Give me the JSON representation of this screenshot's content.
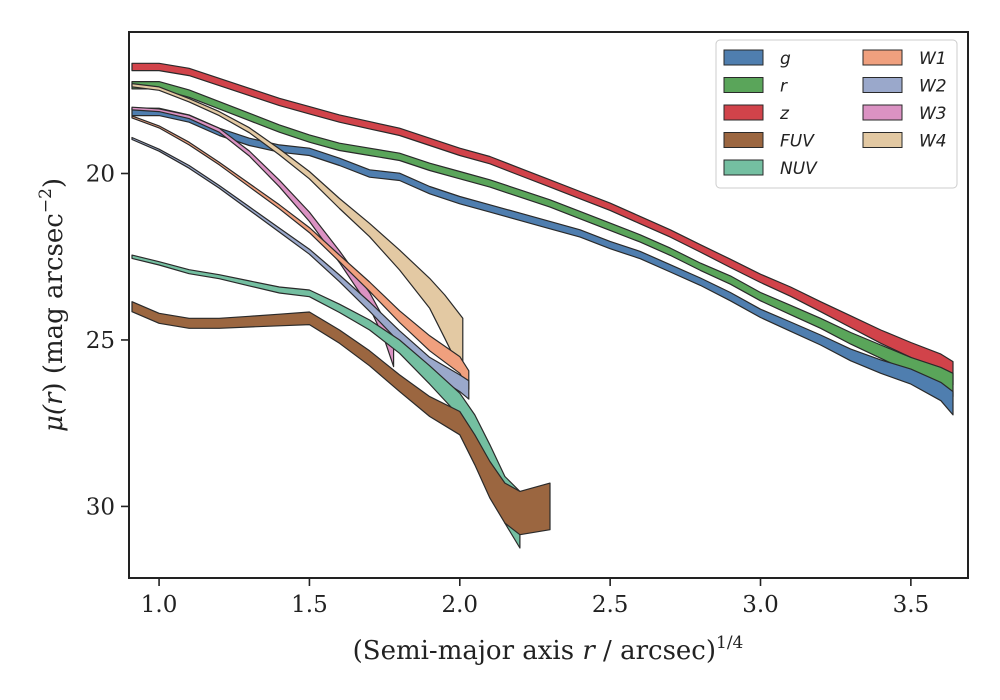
{
  "chart_data": {
    "type": "area",
    "xlabel_main": "(Semi-major axis ",
    "xlabel_var": "r",
    "xlabel_tail": " / arcsec)",
    "xlabel_sup": "1/4",
    "ylabel_pre": "μ(",
    "ylabel_var": "r",
    "ylabel_post": ") (mag arcsec",
    "ylabel_sup": "−2",
    "ylabel_end": ")",
    "xlim": [
      0.9,
      3.69
    ],
    "ylim": [
      32.15,
      15.75
    ],
    "y_inverted": true,
    "xticks": [
      1.0,
      1.5,
      2.0,
      2.5,
      3.0,
      3.5
    ],
    "xtick_labels": [
      "1.0",
      "1.5",
      "2.0",
      "2.5",
      "3.0",
      "3.5"
    ],
    "yticks": [
      20,
      25,
      30
    ],
    "ytick_labels": [
      "20",
      "25",
      "30"
    ],
    "grid": false,
    "legend_position": "top-right",
    "legend_columns": 2,
    "series": [
      {
        "name": "z",
        "color": "#d1434a",
        "points": [
          [
            0.91,
            16.8
          ],
          [
            1.0,
            16.8
          ],
          [
            1.1,
            16.95
          ],
          [
            1.2,
            17.25
          ],
          [
            1.3,
            17.55
          ],
          [
            1.4,
            17.85
          ],
          [
            1.5,
            18.1
          ],
          [
            1.6,
            18.35
          ],
          [
            1.7,
            18.55
          ],
          [
            1.8,
            18.75
          ],
          [
            1.9,
            19.05
          ],
          [
            2.0,
            19.35
          ],
          [
            2.1,
            19.6
          ],
          [
            2.2,
            19.95
          ],
          [
            2.3,
            20.3
          ],
          [
            2.4,
            20.65
          ],
          [
            2.5,
            21.0
          ],
          [
            2.6,
            21.4
          ],
          [
            2.7,
            21.8
          ],
          [
            2.8,
            22.25
          ],
          [
            2.9,
            22.7
          ],
          [
            3.0,
            23.15
          ],
          [
            3.1,
            23.55
          ],
          [
            3.2,
            24.0
          ],
          [
            3.3,
            24.45
          ],
          [
            3.4,
            24.9
          ],
          [
            3.5,
            25.3
          ],
          [
            3.6,
            25.7
          ],
          [
            3.64,
            26.0
          ]
        ],
        "width": [
          0.22,
          0.22,
          0.22,
          0.22,
          0.22,
          0.22,
          0.22,
          0.22,
          0.22,
          0.22,
          0.22,
          0.22,
          0.22,
          0.22,
          0.22,
          0.22,
          0.22,
          0.22,
          0.22,
          0.22,
          0.25,
          0.25,
          0.28,
          0.3,
          0.35,
          0.4,
          0.45,
          0.55,
          0.7
        ]
      },
      {
        "name": "r",
        "color": "#5aa55a",
        "points": [
          [
            0.91,
            17.35
          ],
          [
            1.0,
            17.35
          ],
          [
            1.1,
            17.6
          ],
          [
            1.2,
            17.95
          ],
          [
            1.3,
            18.3
          ],
          [
            1.4,
            18.65
          ],
          [
            1.5,
            18.95
          ],
          [
            1.6,
            19.2
          ],
          [
            1.7,
            19.35
          ],
          [
            1.8,
            19.5
          ],
          [
            1.9,
            19.8
          ],
          [
            2.0,
            20.05
          ],
          [
            2.1,
            20.3
          ],
          [
            2.2,
            20.6
          ],
          [
            2.3,
            20.9
          ],
          [
            2.4,
            21.25
          ],
          [
            2.5,
            21.6
          ],
          [
            2.6,
            21.95
          ],
          [
            2.7,
            22.35
          ],
          [
            2.8,
            22.8
          ],
          [
            2.9,
            23.2
          ],
          [
            3.0,
            23.7
          ],
          [
            3.1,
            24.1
          ],
          [
            3.2,
            24.5
          ],
          [
            3.3,
            24.95
          ],
          [
            3.4,
            25.35
          ],
          [
            3.5,
            25.75
          ],
          [
            3.6,
            26.1
          ],
          [
            3.64,
            26.35
          ]
        ],
        "width": [
          0.22,
          0.22,
          0.22,
          0.22,
          0.22,
          0.22,
          0.22,
          0.22,
          0.22,
          0.22,
          0.22,
          0.22,
          0.22,
          0.22,
          0.22,
          0.22,
          0.22,
          0.22,
          0.22,
          0.22,
          0.25,
          0.25,
          0.28,
          0.3,
          0.35,
          0.4,
          0.45,
          0.55,
          0.7
        ]
      },
      {
        "name": "g",
        "color": "#4f7eaf",
        "points": [
          [
            0.91,
            18.15
          ],
          [
            1.0,
            18.15
          ],
          [
            1.1,
            18.35
          ],
          [
            1.2,
            18.75
          ],
          [
            1.3,
            19.05
          ],
          [
            1.4,
            19.25
          ],
          [
            1.5,
            19.35
          ],
          [
            1.6,
            19.65
          ],
          [
            1.7,
            20.0
          ],
          [
            1.8,
            20.1
          ],
          [
            1.9,
            20.5
          ],
          [
            2.0,
            20.8
          ],
          [
            2.1,
            21.05
          ],
          [
            2.2,
            21.3
          ],
          [
            2.3,
            21.55
          ],
          [
            2.4,
            21.8
          ],
          [
            2.5,
            22.15
          ],
          [
            2.6,
            22.45
          ],
          [
            2.7,
            22.85
          ],
          [
            2.8,
            23.25
          ],
          [
            2.9,
            23.7
          ],
          [
            3.0,
            24.2
          ],
          [
            3.1,
            24.6
          ],
          [
            3.2,
            25.0
          ],
          [
            3.3,
            25.45
          ],
          [
            3.4,
            25.8
          ],
          [
            3.5,
            26.1
          ],
          [
            3.6,
            26.55
          ],
          [
            3.64,
            26.9
          ]
        ],
        "width": [
          0.22,
          0.22,
          0.22,
          0.22,
          0.22,
          0.22,
          0.22,
          0.22,
          0.22,
          0.22,
          0.22,
          0.22,
          0.22,
          0.22,
          0.22,
          0.22,
          0.22,
          0.22,
          0.22,
          0.22,
          0.25,
          0.25,
          0.28,
          0.3,
          0.35,
          0.4,
          0.45,
          0.55,
          0.7
        ]
      },
      {
        "name": "W4",
        "color": "#e3c9a3",
        "points": [
          [
            0.91,
            17.35
          ],
          [
            1.0,
            17.45
          ],
          [
            1.1,
            17.8
          ],
          [
            1.2,
            18.2
          ],
          [
            1.3,
            18.7
          ],
          [
            1.4,
            19.35
          ],
          [
            1.5,
            20.05
          ],
          [
            1.6,
            20.9
          ],
          [
            1.7,
            21.7
          ],
          [
            1.8,
            22.6
          ],
          [
            1.9,
            23.6
          ],
          [
            1.95,
            24.3
          ],
          [
            2.01,
            25.2
          ]
        ],
        "width": [
          0.1,
          0.1,
          0.1,
          0.12,
          0.15,
          0.18,
          0.22,
          0.3,
          0.4,
          0.6,
          0.9,
          1.3,
          1.7
        ]
      },
      {
        "name": "W3",
        "color": "#db92c3",
        "points": [
          [
            0.91,
            18.05
          ],
          [
            1.0,
            18.1
          ],
          [
            1.1,
            18.3
          ],
          [
            1.2,
            18.7
          ],
          [
            1.3,
            19.4
          ],
          [
            1.4,
            20.3
          ],
          [
            1.5,
            21.3
          ],
          [
            1.6,
            22.5
          ],
          [
            1.7,
            23.8
          ],
          [
            1.75,
            24.7
          ],
          [
            1.78,
            25.4
          ]
        ],
        "width": [
          0.08,
          0.08,
          0.1,
          0.12,
          0.15,
          0.2,
          0.28,
          0.35,
          0.45,
          0.6,
          0.8
        ]
      },
      {
        "name": "W1",
        "color": "#f0a07e",
        "points": [
          [
            0.91,
            18.3
          ],
          [
            1.0,
            18.6
          ],
          [
            1.1,
            19.1
          ],
          [
            1.2,
            19.7
          ],
          [
            1.3,
            20.35
          ],
          [
            1.4,
            21.0
          ],
          [
            1.5,
            21.7
          ],
          [
            1.6,
            22.55
          ],
          [
            1.7,
            23.4
          ],
          [
            1.8,
            24.3
          ],
          [
            1.9,
            25.1
          ],
          [
            2.0,
            25.75
          ],
          [
            2.03,
            26.2
          ]
        ],
        "width": [
          0.06,
          0.06,
          0.08,
          0.08,
          0.1,
          0.12,
          0.15,
          0.2,
          0.28,
          0.35,
          0.45,
          0.5,
          0.55
        ]
      },
      {
        "name": "W2",
        "color": "#9aa8cb",
        "points": [
          [
            0.91,
            18.95
          ],
          [
            1.0,
            19.3
          ],
          [
            1.1,
            19.8
          ],
          [
            1.2,
            20.4
          ],
          [
            1.3,
            21.05
          ],
          [
            1.4,
            21.7
          ],
          [
            1.5,
            22.35
          ],
          [
            1.6,
            23.15
          ],
          [
            1.7,
            24.0
          ],
          [
            1.8,
            24.9
          ],
          [
            1.9,
            25.75
          ],
          [
            2.0,
            26.3
          ],
          [
            2.03,
            26.5
          ]
        ],
        "width": [
          0.06,
          0.06,
          0.08,
          0.08,
          0.1,
          0.12,
          0.15,
          0.2,
          0.28,
          0.35,
          0.45,
          0.5,
          0.55
        ]
      },
      {
        "name": "NUV",
        "color": "#74bfa1",
        "points": [
          [
            0.91,
            22.5
          ],
          [
            1.0,
            22.7
          ],
          [
            1.1,
            22.95
          ],
          [
            1.2,
            23.1
          ],
          [
            1.3,
            23.3
          ],
          [
            1.4,
            23.5
          ],
          [
            1.5,
            23.6
          ],
          [
            1.6,
            24.05
          ],
          [
            1.7,
            24.55
          ],
          [
            1.8,
            25.2
          ],
          [
            1.9,
            26.05
          ],
          [
            2.0,
            26.95
          ],
          [
            2.05,
            27.7
          ],
          [
            2.1,
            28.7
          ],
          [
            2.15,
            29.8
          ],
          [
            2.2,
            30.4
          ]
        ],
        "width": [
          0.1,
          0.1,
          0.12,
          0.12,
          0.15,
          0.18,
          0.2,
          0.25,
          0.3,
          0.4,
          0.55,
          0.7,
          0.9,
          1.1,
          1.4,
          1.7
        ]
      },
      {
        "name": "FUV",
        "color": "#9b6640",
        "points": [
          [
            0.91,
            24.0
          ],
          [
            1.0,
            24.35
          ],
          [
            1.1,
            24.5
          ],
          [
            1.2,
            24.5
          ],
          [
            1.3,
            24.45
          ],
          [
            1.4,
            24.4
          ],
          [
            1.5,
            24.35
          ],
          [
            1.6,
            24.9
          ],
          [
            1.7,
            25.55
          ],
          [
            1.8,
            26.3
          ],
          [
            1.9,
            27.0
          ],
          [
            2.0,
            27.5
          ],
          [
            2.05,
            28.3
          ],
          [
            2.1,
            29.2
          ],
          [
            2.15,
            29.9
          ],
          [
            2.2,
            30.2
          ],
          [
            2.3,
            30.0
          ]
        ],
        "width": [
          0.3,
          0.3,
          0.3,
          0.3,
          0.32,
          0.35,
          0.38,
          0.4,
          0.45,
          0.5,
          0.6,
          0.7,
          0.9,
          1.1,
          1.2,
          1.3,
          1.4
        ]
      }
    ],
    "legend_entries": [
      {
        "label": "g",
        "color": "#4f7eaf"
      },
      {
        "label": "r",
        "color": "#5aa55a"
      },
      {
        "label": "z",
        "color": "#d1434a"
      },
      {
        "label": "FUV",
        "color": "#9b6640"
      },
      {
        "label": "NUV",
        "color": "#74bfa1"
      },
      {
        "label": "W1",
        "color": "#f0a07e"
      },
      {
        "label": "W2",
        "color": "#9aa8cb"
      },
      {
        "label": "W3",
        "color": "#db92c3"
      },
      {
        "label": "W4",
        "color": "#e3c9a3"
      }
    ]
  }
}
